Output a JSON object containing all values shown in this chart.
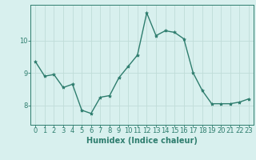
{
  "x": [
    0,
    1,
    2,
    3,
    4,
    5,
    6,
    7,
    8,
    9,
    10,
    11,
    12,
    13,
    14,
    15,
    16,
    17,
    18,
    19,
    20,
    21,
    22,
    23
  ],
  "y": [
    9.35,
    8.9,
    8.95,
    8.55,
    8.65,
    7.85,
    7.75,
    8.25,
    8.3,
    8.85,
    9.2,
    9.55,
    10.85,
    10.15,
    10.3,
    10.25,
    10.05,
    9.0,
    8.45,
    8.05,
    8.05,
    8.05,
    8.1,
    8.2
  ],
  "line_color": "#2e7d6e",
  "marker": "*",
  "marker_color": "#2e7d6e",
  "bg_color": "#d8f0ee",
  "grid_color": "#c0dcd8",
  "xlabel": "Humidex (Indice chaleur)",
  "yticks": [
    8,
    9,
    10
  ],
  "xticks": [
    0,
    1,
    2,
    3,
    4,
    5,
    6,
    7,
    8,
    9,
    10,
    11,
    12,
    13,
    14,
    15,
    16,
    17,
    18,
    19,
    20,
    21,
    22,
    23
  ],
  "ylim": [
    7.4,
    11.1
  ],
  "xlim": [
    -0.5,
    23.5
  ],
  "xlabel_fontsize": 7,
  "tick_fontsize": 6,
  "linewidth": 1.0
}
